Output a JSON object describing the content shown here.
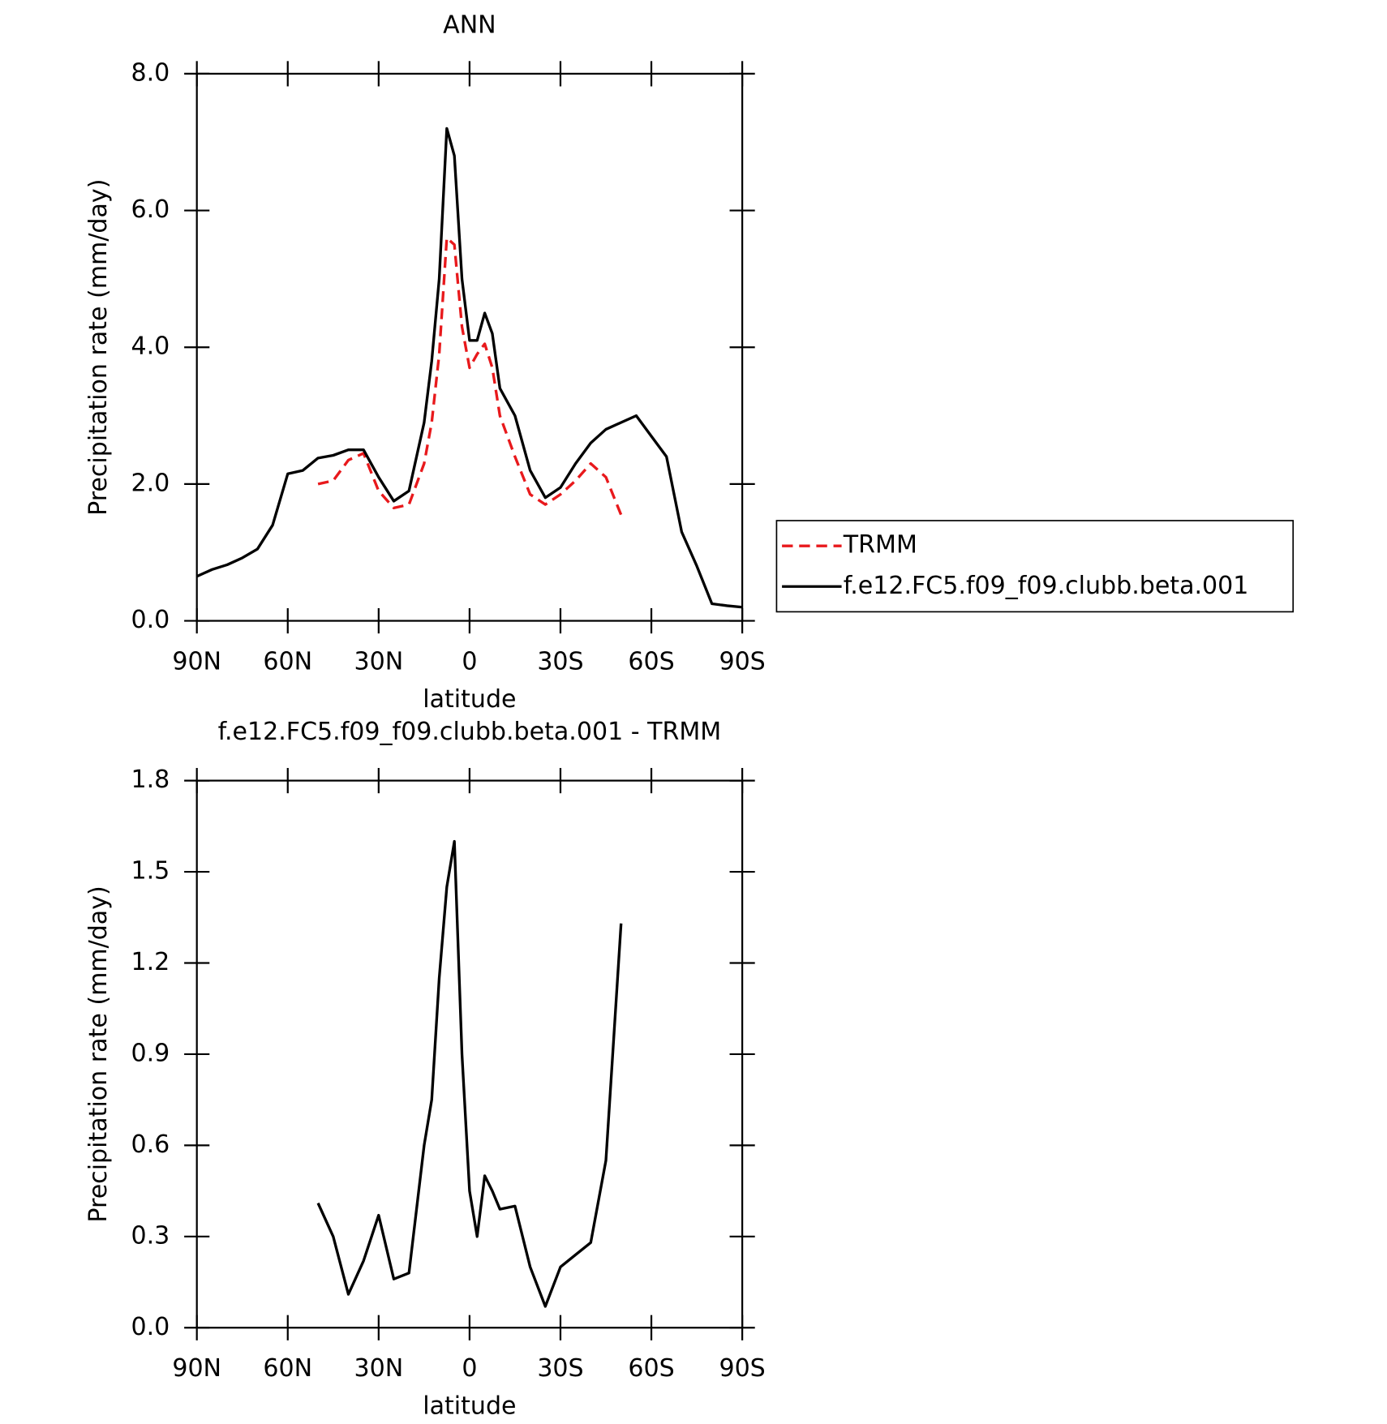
{
  "chart_data": [
    {
      "type": "line",
      "title": "ANN",
      "xlabel": "latitude",
      "ylabel": "Precipitation rate (mm/day)",
      "x": [
        90,
        85,
        80,
        75,
        70,
        65,
        60,
        55,
        50,
        45,
        40,
        35,
        30,
        25,
        20,
        15,
        12.5,
        10,
        7.5,
        5,
        2.5,
        0,
        -2.5,
        -5,
        -7.5,
        -10,
        -15,
        -20,
        -25,
        -30,
        -35,
        -40,
        -45,
        -50,
        -55,
        -60,
        -65,
        -70,
        -75,
        -80,
        -85,
        -90
      ],
      "series": [
        {
          "name": "TRMM",
          "color": "#e8191c",
          "dash": true,
          "values": [
            null,
            null,
            null,
            null,
            null,
            null,
            null,
            null,
            2.0,
            2.05,
            2.35,
            2.45,
            1.9,
            1.65,
            1.7,
            2.3,
            2.9,
            3.9,
            5.6,
            5.5,
            4.3,
            3.7,
            3.9,
            4.05,
            3.7,
            3.0,
            2.4,
            1.85,
            1.7,
            1.85,
            2.05,
            2.3,
            2.1,
            1.55,
            null,
            null,
            null,
            null,
            null,
            null,
            null,
            null
          ]
        },
        {
          "name": "f.e12.FC5.f09_f09.clubb.beta.001",
          "color": "#000000",
          "dash": false,
          "values": [
            0.65,
            0.75,
            0.82,
            0.92,
            1.05,
            1.4,
            2.15,
            2.2,
            2.38,
            2.42,
            2.5,
            2.5,
            2.1,
            1.75,
            1.9,
            2.9,
            3.8,
            5.0,
            7.2,
            6.8,
            5.0,
            4.1,
            4.1,
            4.5,
            4.2,
            3.4,
            3.0,
            2.2,
            1.8,
            1.95,
            2.3,
            2.6,
            2.8,
            2.9,
            3.0,
            2.7,
            2.4,
            1.3,
            0.8,
            0.25,
            0.22,
            0.2
          ]
        }
      ],
      "xlim": [
        90,
        -90
      ],
      "xticks": [
        {
          "value": 90,
          "label": "90N"
        },
        {
          "value": 60,
          "label": "60N"
        },
        {
          "value": 30,
          "label": "30N"
        },
        0,
        {
          "value": -30,
          "label": "30S"
        },
        {
          "value": -60,
          "label": "60S"
        },
        {
          "value": -90,
          "label": "90S"
        }
      ],
      "ylim": [
        0,
        8
      ],
      "yticks": [
        {
          "value": 0,
          "label": "0.0"
        },
        {
          "value": 2,
          "label": "2.0"
        },
        {
          "value": 4,
          "label": "4.0"
        },
        {
          "value": 6,
          "label": "6.0"
        },
        {
          "value": 8,
          "label": "8.0"
        }
      ],
      "legend": "right"
    },
    {
      "type": "line",
      "title": "f.e12.FC5.f09_f09.clubb.beta.001 - TRMM",
      "xlabel": "latitude",
      "ylabel": "Precipitation rate (mm/day)",
      "x": [
        90,
        85,
        80,
        75,
        70,
        65,
        60,
        55,
        50,
        45,
        40,
        35,
        30,
        25,
        20,
        15,
        12.5,
        10,
        7.5,
        5,
        2.5,
        0,
        -2.5,
        -5,
        -7.5,
        -10,
        -15,
        -20,
        -25,
        -30,
        -35,
        -40,
        -45,
        -50,
        -55,
        -60,
        -65,
        -70,
        -75,
        -80,
        -85,
        -90
      ],
      "series": [
        {
          "name": null,
          "color": "#000000",
          "dash": false,
          "values": [
            null,
            null,
            null,
            null,
            null,
            null,
            null,
            null,
            0.41,
            0.3,
            0.11,
            0.22,
            0.37,
            0.16,
            0.18,
            0.6,
            0.75,
            1.15,
            1.45,
            1.6,
            0.9,
            0.45,
            0.3,
            0.5,
            0.45,
            0.39,
            0.4,
            0.2,
            0.07,
            0.2,
            0.24,
            0.28,
            0.55,
            1.33,
            null,
            null,
            null,
            null,
            null,
            null,
            null,
            null
          ]
        }
      ],
      "xlim": [
        90,
        -90
      ],
      "xticks": [
        {
          "value": 90,
          "label": "90N"
        },
        {
          "value": 60,
          "label": "60N"
        },
        {
          "value": 30,
          "label": "30N"
        },
        0,
        {
          "value": -30,
          "label": "30S"
        },
        {
          "value": -60,
          "label": "60S"
        },
        {
          "value": -90,
          "label": "90S"
        }
      ],
      "ylim": [
        0,
        1.8
      ],
      "yticks": [
        {
          "value": 0,
          "label": "0.0"
        },
        {
          "value": 0.3,
          "label": "0.3"
        },
        {
          "value": 0.6,
          "label": "0.6"
        },
        {
          "value": 0.9,
          "label": "0.9"
        },
        {
          "value": 1.2,
          "label": "1.2"
        },
        {
          "value": 1.5,
          "label": "1.5"
        },
        {
          "value": 1.8,
          "label": "1.8"
        }
      ]
    }
  ]
}
